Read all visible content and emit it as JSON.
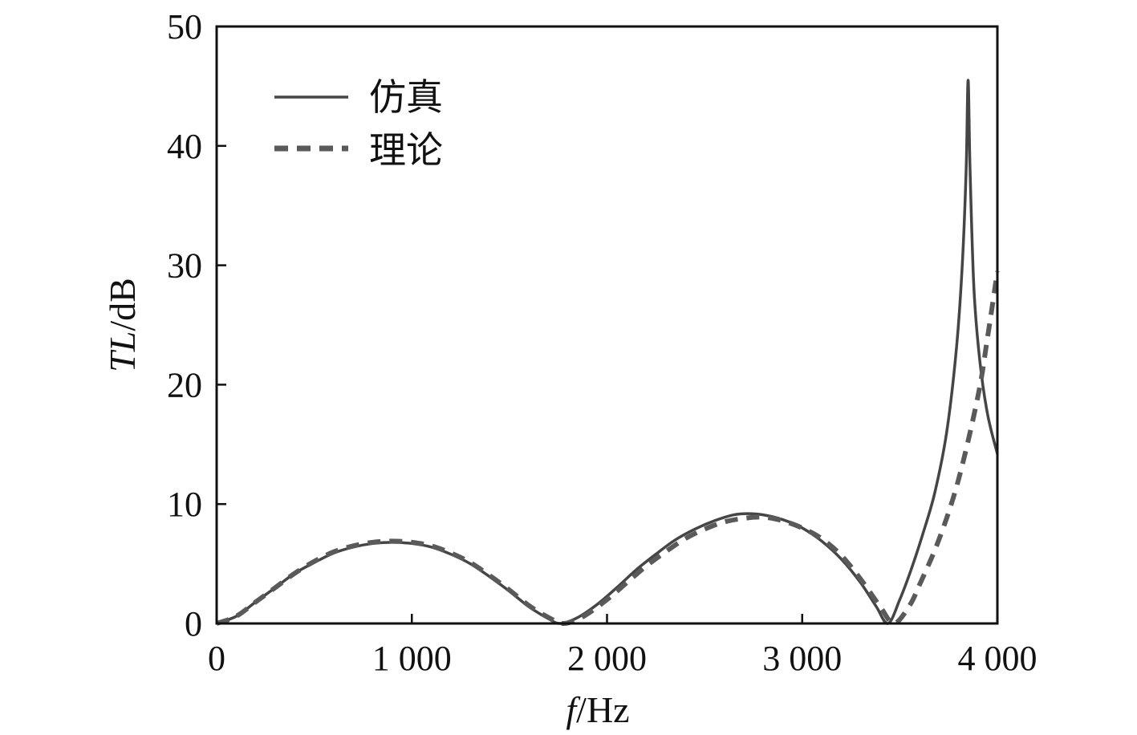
{
  "chart_data": {
    "type": "line",
    "title": "",
    "xlabel": {
      "italic": "f",
      "rest": "/Hz"
    },
    "ylabel": {
      "italic": "TL",
      "rest": "/dB"
    },
    "xlim": [
      0,
      4000
    ],
    "ylim": [
      0,
      50
    ],
    "xticks": [
      0,
      1000,
      2000,
      3000,
      4000
    ],
    "xtick_labels": [
      "0",
      "1 000",
      "2 000",
      "3 000",
      "4 000"
    ],
    "yticks": [
      0,
      10,
      20,
      30,
      40,
      50
    ],
    "ytick_labels": [
      "0",
      "10",
      "20",
      "30",
      "40",
      "50"
    ],
    "grid": false,
    "legend_position": "top-left",
    "series": [
      {
        "name": "仿真",
        "style": "solid",
        "color": "#454545",
        "x": [
          0,
          100,
          200,
          300,
          400,
          500,
          600,
          700,
          800,
          900,
          1000,
          1100,
          1200,
          1300,
          1400,
          1500,
          1600,
          1700,
          1760,
          1850,
          1950,
          2050,
          2150,
          2250,
          2350,
          2450,
          2550,
          2650,
          2720,
          2800,
          2900,
          3000,
          3100,
          3200,
          3300,
          3380,
          3440,
          3500,
          3560,
          3620,
          3680,
          3740,
          3790,
          3820,
          3840,
          3850,
          3860,
          3880,
          3910,
          3950,
          4000
        ],
        "y": [
          0,
          0.6,
          1.8,
          3.0,
          4.2,
          5.1,
          5.9,
          6.4,
          6.7,
          6.8,
          6.7,
          6.4,
          5.8,
          5.0,
          3.9,
          2.7,
          1.4,
          0.4,
          0,
          0.5,
          1.6,
          3.0,
          4.5,
          5.8,
          7.0,
          7.9,
          8.6,
          9.1,
          9.2,
          9.1,
          8.7,
          8.0,
          6.9,
          5.4,
          3.4,
          1.4,
          0,
          2.0,
          4.6,
          7.6,
          11.0,
          16.0,
          23.0,
          30.0,
          38.0,
          45.5,
          38.0,
          28.0,
          22.0,
          17.5,
          14.2
        ]
      },
      {
        "name": "理论",
        "style": "dashed",
        "color": "#5a5a5a",
        "x": [
          0,
          100,
          200,
          300,
          400,
          500,
          600,
          700,
          800,
          900,
          1000,
          1100,
          1200,
          1300,
          1400,
          1500,
          1600,
          1700,
          1780,
          1880,
          2000,
          2100,
          2200,
          2300,
          2400,
          2500,
          2600,
          2700,
          2800,
          2900,
          3000,
          3100,
          3200,
          3300,
          3400,
          3470,
          3550,
          3600,
          3700,
          3800,
          3900,
          3950,
          4000
        ],
        "y": [
          0,
          0.6,
          1.8,
          3.0,
          4.2,
          5.2,
          6.0,
          6.5,
          6.8,
          6.9,
          6.8,
          6.5,
          5.9,
          5.1,
          4.0,
          2.8,
          1.5,
          0.5,
          0,
          0.6,
          2.0,
          3.4,
          4.8,
          6.0,
          7.1,
          7.9,
          8.5,
          8.8,
          8.9,
          8.6,
          8.0,
          7.1,
          5.7,
          3.7,
          1.4,
          0,
          1.5,
          3.2,
          7.0,
          12.0,
          19.0,
          24.0,
          29.5
        ]
      }
    ]
  }
}
